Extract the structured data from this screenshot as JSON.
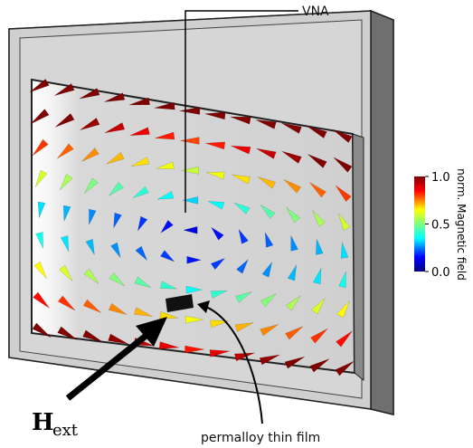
{
  "annotations": {
    "vna": "VNA",
    "film": "permalloy thin film",
    "field_symbol": "H",
    "field_subscript": "ext"
  },
  "colorbar": {
    "label": "norm. Magnetic field",
    "ticks": [
      {
        "value": 0,
        "label": "0.0"
      },
      {
        "value": 0.5,
        "label": "0.5"
      },
      {
        "value": 1,
        "label": "1.0"
      }
    ],
    "range": [
      0,
      1
    ]
  }
}
